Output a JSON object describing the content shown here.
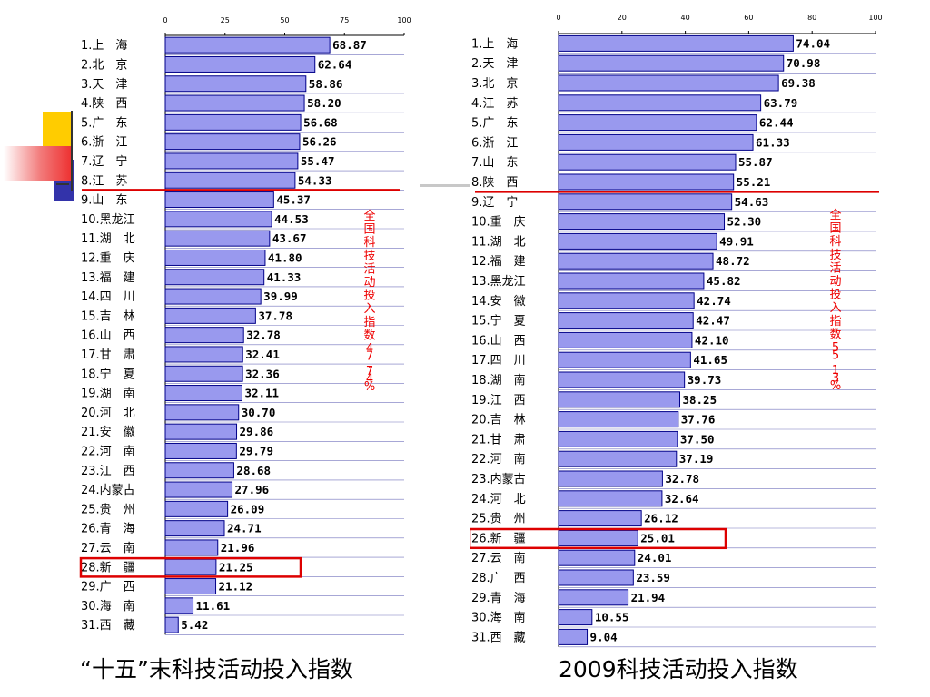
{
  "slide": {
    "caption_left": "“十五”末科技活动投入指数",
    "caption_right": "2009科技活动投入指数"
  },
  "colors": {
    "bar_fill": "#9999ee",
    "bar_stroke": "#000088",
    "divider": "#dd0000",
    "highlight_box": "#dd0000",
    "annotation": "#ee0000",
    "deco_yellow": "#ffcc00",
    "deco_blue": "#3333aa",
    "deco_red": "#ee3333"
  },
  "chart_data": [
    {
      "type": "bar",
      "orientation": "horizontal",
      "title": "“十五”末科技活动投入指数",
      "xlim": [
        0,
        100
      ],
      "xticks": [
        "0",
        "25",
        "50",
        "75",
        "100"
      ],
      "categories": [
        "1.上　海",
        "2.北　京",
        "3.天　津",
        "4.陕　西",
        "5.广　东",
        "6.浙　江",
        "7.辽　宁",
        "8.江　苏",
        "9.山　东",
        "10.黑龙江",
        "11.湖　北",
        "12.重　庆",
        "13.福　建",
        "14.四　川",
        "15.吉　林",
        "16.山　西",
        "17.甘　肃",
        "18.宁　夏",
        "19.湖　南",
        "20.河　北",
        "21.安　徽",
        "22.河　南",
        "23.江　西",
        "24.内蒙古",
        "25.贵　州",
        "26.青　海",
        "27.云　南",
        "28.新　疆",
        "29.广　西",
        "30.海　南",
        "31.西　藏"
      ],
      "values": [
        68.87,
        62.64,
        58.86,
        58.2,
        56.68,
        56.26,
        55.47,
        54.33,
        45.37,
        44.53,
        43.67,
        41.8,
        41.33,
        39.99,
        37.78,
        32.78,
        32.41,
        32.36,
        32.11,
        30.7,
        29.86,
        29.79,
        28.68,
        27.96,
        26.09,
        24.71,
        21.96,
        21.25,
        21.12,
        11.61,
        5.42
      ],
      "value_labels": [
        "68.87",
        "62.64",
        "58.86",
        "58.20",
        "56.68",
        "56.26",
        "55.47",
        "54.33",
        "45.37",
        "44.53",
        "43.67",
        "41.80",
        "41.33",
        "39.99",
        "37.78",
        "32.78",
        "32.41",
        "32.36",
        "32.11",
        "30.70",
        "29.86",
        "29.79",
        "28.68",
        "27.96",
        "26.09",
        "24.71",
        "21.96",
        "21.25",
        "21.12",
        "11.61",
        "5.42"
      ],
      "national_average_label": "全国科技活动投入指数47.74%",
      "divider_after_rank": 8,
      "highlighted_rank": 28
    },
    {
      "type": "bar",
      "orientation": "horizontal",
      "title": "2009科技活动投入指数",
      "xlim": [
        0,
        100
      ],
      "xticks": [
        "0",
        "20",
        "40",
        "60",
        "80",
        "100"
      ],
      "categories": [
        "1.上　海",
        "2.天　津",
        "3.北　京",
        "4.江　苏",
        "5.广　东",
        "6.浙　江",
        "7.山　东",
        "8.陕　西",
        "9.辽　宁",
        "10.重　庆",
        "11.湖　北",
        "12.福　建",
        "13.黑龙江",
        "14.安　徽",
        "15.宁　夏",
        "16.山　西",
        "17.四　川",
        "18.湖　南",
        "19.江　西",
        "20.吉　林",
        "21.甘　肃",
        "22.河　南",
        "23.内蒙古",
        "24.河　北",
        "25.贵　州",
        "26.新　疆",
        "27.云　南",
        "28.广　西",
        "29.青　海",
        "30.海　南",
        "31.西　藏"
      ],
      "values": [
        74.04,
        70.98,
        69.38,
        63.79,
        62.44,
        61.33,
        55.87,
        55.21,
        54.63,
        52.3,
        49.91,
        48.72,
        45.82,
        42.74,
        42.47,
        42.1,
        41.65,
        39.73,
        38.25,
        37.76,
        37.5,
        37.19,
        32.78,
        32.64,
        26.12,
        25.01,
        24.01,
        23.59,
        21.94,
        10.55,
        9.04
      ],
      "value_labels": [
        "74.04",
        "70.98",
        "69.38",
        "63.79",
        "62.44",
        "61.33",
        "55.87",
        "55.21",
        "54.63",
        "52.30",
        "49.91",
        "48.72",
        "45.82",
        "42.74",
        "42.47",
        "42.10",
        "41.65",
        "39.73",
        "38.25",
        "37.76",
        "37.50",
        "37.19",
        "32.78",
        "32.64",
        "26.12",
        "25.01",
        "24.01",
        "23.59",
        "21.94",
        "10.55",
        "9.04"
      ],
      "national_average_label": "全国科技活动投入指数55.13%",
      "divider_after_rank": 8,
      "highlighted_rank": 26
    }
  ]
}
